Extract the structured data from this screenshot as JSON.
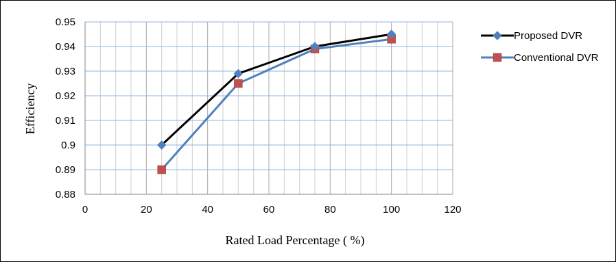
{
  "chart_data": {
    "type": "line",
    "title": "",
    "xlabel": "Rated Load Percentage ( %)",
    "ylabel": "Efficiency",
    "xlim": [
      0,
      120
    ],
    "ylim": [
      0.88,
      0.95
    ],
    "xticks": [
      0,
      20,
      40,
      60,
      80,
      100,
      120
    ],
    "xtick_labels": [
      "0",
      "20",
      "40",
      "60",
      "80",
      "100",
      "120"
    ],
    "yticks": [
      0.88,
      0.89,
      0.9,
      0.91,
      0.92,
      0.93,
      0.94,
      0.95
    ],
    "ytick_labels": [
      "0.88",
      "0.89",
      "0.9",
      "0.91",
      "0.92",
      "0.93",
      "0.94",
      "0.95"
    ],
    "x_minor_step": 5,
    "grid": true,
    "legend_position": "top-right, outside plot",
    "x": [
      25,
      50,
      75,
      100
    ],
    "series": [
      {
        "name": "Proposed DVR",
        "values": [
          0.9,
          0.929,
          0.94,
          0.945
        ],
        "line_color": "#000000",
        "marker": "diamond",
        "marker_color": "#4F81BD"
      },
      {
        "name": "Conventional DVR",
        "values": [
          0.89,
          0.925,
          0.939,
          0.943
        ],
        "line_color": "#4F81BD",
        "marker": "square",
        "marker_color": "#C0504D"
      }
    ]
  }
}
